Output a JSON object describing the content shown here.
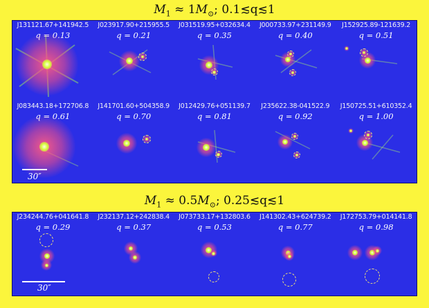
{
  "titles": {
    "top": {
      "mass": "M",
      "mass_sub": "1",
      "approx": " ≈ 1",
      "unit": "M",
      "unit_sub": "⊙",
      "range": ";   0.1≲q≲1"
    },
    "bottom": {
      "mass": "M",
      "mass_sub": "1",
      "approx": " ≈ 0.5",
      "unit": "M",
      "unit_sub": "⊙",
      "range": ";   0.25≲q≲1"
    }
  },
  "scale_label": "30″",
  "panel_top": [
    {
      "id": "J131121.67+141942.5",
      "q": "q = 0.13"
    },
    {
      "id": "J023917.90+215955.5",
      "q": "q = 0.21"
    },
    {
      "id": "J031519.95+032634.4",
      "q": "q = 0.35"
    },
    {
      "id": "J000733.97+231149.9",
      "q": "q = 0.40"
    },
    {
      "id": "J152925.89-121639.2",
      "q": "q = 0.51"
    },
    {
      "id": "J083443.18+172706.8",
      "q": "q = 0.61"
    },
    {
      "id": "J141701.60+504358.9",
      "q": "q = 0.70"
    },
    {
      "id": "J012429.76+051139.7",
      "q": "q = 0.81"
    },
    {
      "id": "J235622.38-041522.9",
      "q": "q = 0.92"
    },
    {
      "id": "J150725.51+610352.4",
      "q": "q = 1.00"
    }
  ],
  "panel_bottom": [
    {
      "id": "J234244.76+041641.8",
      "q": "q = 0.29"
    },
    {
      "id": "J232137.12+242838.4",
      "q": "q = 0.37"
    },
    {
      "id": "J073733.17+132803.6",
      "q": "q = 0.53"
    },
    {
      "id": "J141302.43+624739.2",
      "q": "q = 0.77"
    },
    {
      "id": "J172753.79+014141.8",
      "q": "q = 0.98"
    }
  ],
  "colors": {
    "background": "#fbf53c",
    "panel": "#2b2ee6",
    "star_core": "#c8ff3a",
    "star_halo": "#ff4f7a",
    "ring": "#f2e27a"
  }
}
